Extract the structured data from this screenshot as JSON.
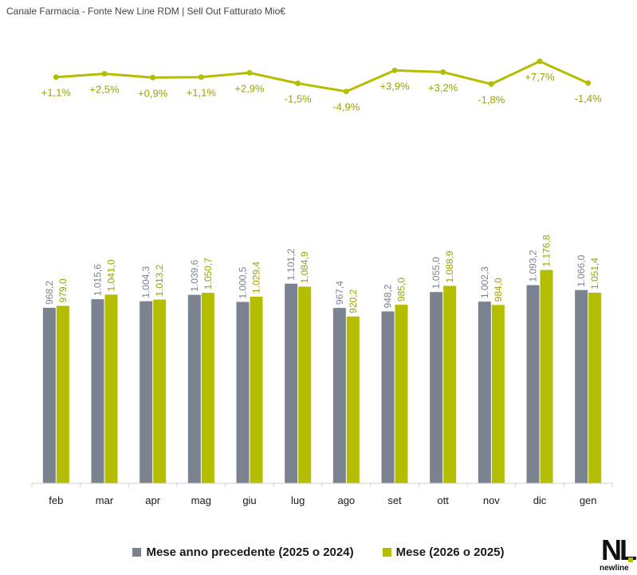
{
  "header": {
    "subtitle": "Canale Farmacia - Fonte New Line RDM | Sell Out Fatturato Mio€"
  },
  "colors": {
    "prev": "#7b8290",
    "curr": "#b5bd00",
    "axis": "#d0d0d0",
    "text": "#1a1a1a"
  },
  "chart_data": {
    "type": "bar",
    "categories": [
      "feb",
      "mar",
      "apr",
      "mag",
      "giu",
      "lug",
      "ago",
      "set",
      "ott",
      "nov",
      "dic",
      "gen"
    ],
    "series": [
      {
        "name": "Mese anno precedente (2025 o 2024)",
        "values": [
          968.2,
          1015.6,
          1004.3,
          1039.6,
          1000.5,
          1101.2,
          967.4,
          948.2,
          1055.0,
          1002.3,
          1093.2,
          1066.0
        ],
        "labels": [
          "968,2",
          "1.015,6",
          "1.004,3",
          "1.039,6",
          "1.000,5",
          "1.101,2",
          "967,4",
          "948,2",
          "1.055,0",
          "1.002,3",
          "1.093,2",
          "1.066,0"
        ]
      },
      {
        "name": "Mese (2026 o 2025)",
        "values": [
          979.0,
          1041.0,
          1013.2,
          1050.7,
          1029.4,
          1084.9,
          920.2,
          985.0,
          1088.9,
          984.0,
          1176.8,
          1051.4
        ],
        "labels": [
          "979,0",
          "1.041,0",
          "1.013,2",
          "1.050,7",
          "1.029,4",
          "1.084,9",
          "920,2",
          "985,0",
          "1.088,9",
          "984,0",
          "1.176,8",
          "1.051,4"
        ]
      }
    ],
    "variation": {
      "type": "line",
      "values": [
        1.1,
        2.5,
        0.9,
        1.1,
        2.9,
        -1.5,
        -4.9,
        3.9,
        3.2,
        -1.8,
        7.7,
        -1.4
      ],
      "labels": [
        "+1,1%",
        "+2,5%",
        "+0,9%",
        "+1,1%",
        "+2,9%",
        "-1,5%",
        "-4,9%",
        "+3,9%",
        "+3,2%",
        "-1,8%",
        "+7,7%",
        "-1,4%"
      ]
    },
    "ylim": [
      0,
      1650
    ]
  },
  "legend": {
    "prev_label": "Mese anno precedente (2025 o 2024)",
    "curr_label": "Mese (2026 o 2025)"
  },
  "logo": {
    "mark": "NL",
    "text": "newline"
  }
}
